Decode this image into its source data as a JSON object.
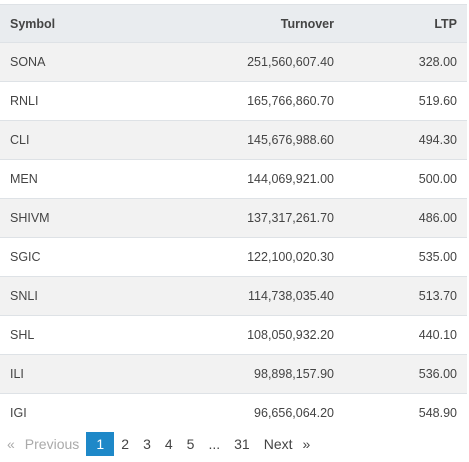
{
  "table": {
    "headers": {
      "symbol": "Symbol",
      "turnover": "Turnover",
      "ltp": "LTP"
    },
    "rows": [
      {
        "symbol": "SONA",
        "turnover": "251,560,607.40",
        "ltp": "328.00"
      },
      {
        "symbol": "RNLI",
        "turnover": "165,766,860.70",
        "ltp": "519.60"
      },
      {
        "symbol": "CLI",
        "turnover": "145,676,988.60",
        "ltp": "494.30"
      },
      {
        "symbol": "MEN",
        "turnover": "144,069,921.00",
        "ltp": "500.00"
      },
      {
        "symbol": "SHIVM",
        "turnover": "137,317,261.70",
        "ltp": "486.00"
      },
      {
        "symbol": "SGIC",
        "turnover": "122,100,020.30",
        "ltp": "535.00"
      },
      {
        "symbol": "SNLI",
        "turnover": "114,738,035.40",
        "ltp": "513.70"
      },
      {
        "symbol": "SHL",
        "turnover": "108,050,932.20",
        "ltp": "440.10"
      },
      {
        "symbol": "ILI",
        "turnover": "98,898,157.90",
        "ltp": "536.00"
      },
      {
        "symbol": "IGI",
        "turnover": "96,656,064.20",
        "ltp": "548.90"
      }
    ]
  },
  "pagination": {
    "prev_icon": "«",
    "prev_label": "Previous",
    "pages": [
      "1",
      "2",
      "3",
      "4",
      "5"
    ],
    "ellipsis": "...",
    "last_page": "31",
    "next_label": "Next",
    "next_icon": "»",
    "active_page": "1",
    "active_color": "#1e88c8"
  }
}
